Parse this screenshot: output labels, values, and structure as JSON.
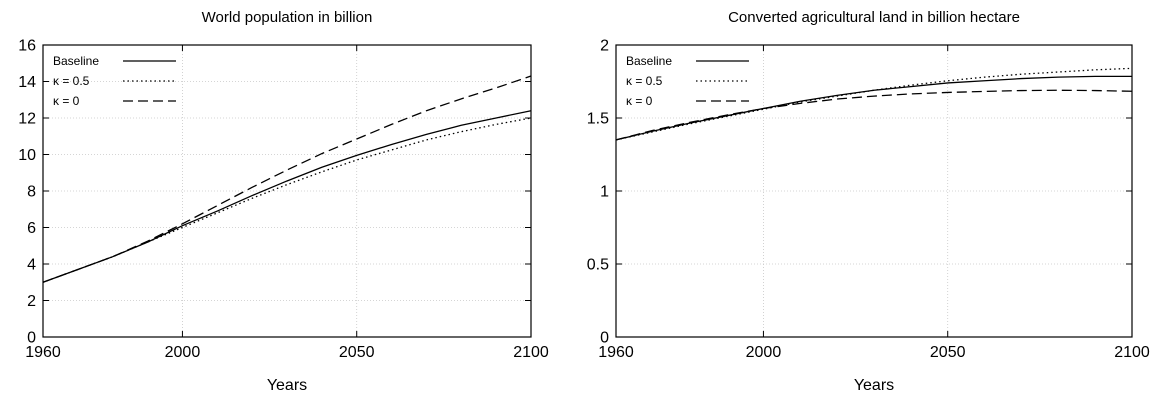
{
  "chart_data": [
    {
      "type": "line",
      "title": "World population in billion",
      "xlabel": "Years",
      "ylabel": "",
      "xlim": [
        1960,
        2100
      ],
      "ylim": [
        0,
        16
      ],
      "xticks": [
        1960,
        2000,
        2050,
        2100
      ],
      "yticks": [
        0,
        2,
        4,
        6,
        8,
        10,
        12,
        14,
        16
      ],
      "grid": true,
      "legend_position": "top-left",
      "series": [
        {
          "name": "Baseline",
          "style": "solid",
          "x": [
            1960,
            1970,
            1980,
            1990,
            2000,
            2010,
            2020,
            2030,
            2040,
            2050,
            2060,
            2070,
            2080,
            2090,
            2100
          ],
          "y": [
            3.0,
            3.7,
            4.4,
            5.2,
            6.1,
            6.9,
            7.75,
            8.55,
            9.3,
            9.95,
            10.55,
            11.1,
            11.6,
            12.0,
            12.4
          ]
        },
        {
          "name": "κ = 0.5",
          "style": "dotted",
          "x": [
            1960,
            1970,
            1980,
            1990,
            2000,
            2010,
            2020,
            2030,
            2040,
            2050,
            2060,
            2070,
            2080,
            2090,
            2100
          ],
          "y": [
            3.0,
            3.7,
            4.4,
            5.2,
            6.0,
            6.8,
            7.6,
            8.35,
            9.05,
            9.7,
            10.25,
            10.8,
            11.25,
            11.65,
            12.0
          ]
        },
        {
          "name": "κ = 0",
          "style": "dashed",
          "x": [
            1960,
            1970,
            1980,
            1990,
            2000,
            2010,
            2020,
            2030,
            2040,
            2050,
            2060,
            2070,
            2080,
            2090,
            2100
          ],
          "y": [
            3.0,
            3.7,
            4.4,
            5.25,
            6.2,
            7.2,
            8.2,
            9.15,
            10.05,
            10.85,
            11.65,
            12.4,
            13.05,
            13.65,
            14.3
          ]
        }
      ]
    },
    {
      "type": "line",
      "title": "Converted agricultural land in billion hectare",
      "xlabel": "Years",
      "ylabel": "",
      "xlim": [
        1960,
        2100
      ],
      "ylim": [
        0,
        2
      ],
      "xticks": [
        1960,
        2000,
        2050,
        2100
      ],
      "yticks": [
        0,
        0.5,
        1,
        1.5,
        2
      ],
      "grid": true,
      "legend_position": "top-left",
      "series": [
        {
          "name": "Baseline",
          "style": "solid",
          "x": [
            1960,
            1970,
            1980,
            1990,
            2000,
            2010,
            2020,
            2030,
            2040,
            2050,
            2060,
            2070,
            2080,
            2090,
            2100
          ],
          "y": [
            1.35,
            1.41,
            1.465,
            1.515,
            1.565,
            1.615,
            1.655,
            1.69,
            1.715,
            1.74,
            1.755,
            1.77,
            1.78,
            1.785,
            1.785
          ]
        },
        {
          "name": "κ = 0.5",
          "style": "dotted",
          "x": [
            1960,
            1970,
            1980,
            1990,
            2000,
            2010,
            2020,
            2030,
            2040,
            2050,
            2060,
            2070,
            2080,
            2090,
            2100
          ],
          "y": [
            1.35,
            1.405,
            1.46,
            1.51,
            1.56,
            1.61,
            1.65,
            1.69,
            1.725,
            1.755,
            1.78,
            1.8,
            1.815,
            1.83,
            1.84
          ]
        },
        {
          "name": "κ = 0",
          "style": "dashed",
          "x": [
            1960,
            1970,
            1980,
            1990,
            2000,
            2010,
            2020,
            2030,
            2040,
            2050,
            2060,
            2070,
            2080,
            2090,
            2100
          ],
          "y": [
            1.35,
            1.415,
            1.47,
            1.52,
            1.565,
            1.6,
            1.63,
            1.65,
            1.665,
            1.675,
            1.682,
            1.688,
            1.69,
            1.688,
            1.683
          ]
        }
      ]
    }
  ]
}
